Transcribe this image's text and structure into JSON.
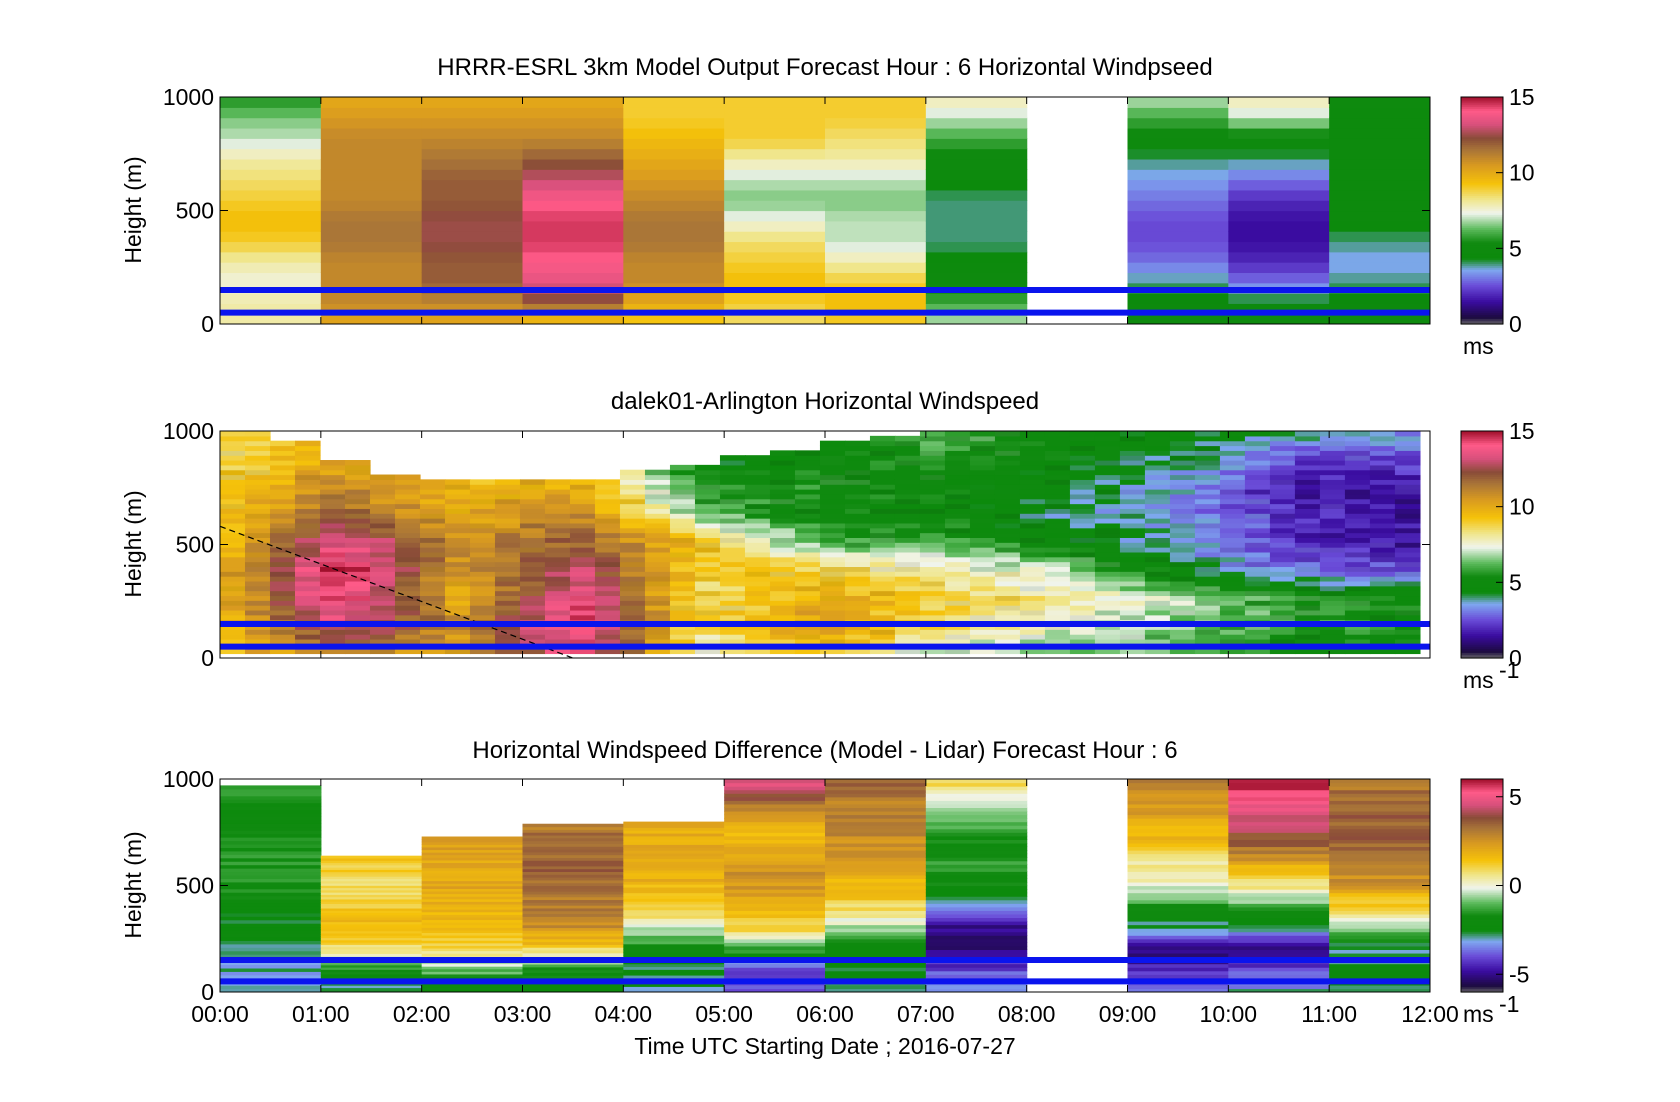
{
  "chart_data": [
    {
      "type": "heatmap",
      "title": "HRRR-ESRL 3km Model Output   Forecast Hour : 6 Horizontal Windpseed",
      "xlabel": "",
      "ylabel": "Height (m)",
      "xlim": [
        0,
        12
      ],
      "ylim": [
        0,
        1000
      ],
      "yticks": [
        0,
        500,
        1000
      ],
      "x_tick_labels": [],
      "colorbar": {
        "range": [
          0,
          15
        ],
        "ticks": [
          0,
          5,
          10,
          15
        ],
        "unit_label": "ms",
        "unit_superscript": ""
      },
      "reference_heights_m": [
        150,
        50
      ],
      "columns": [
        {
          "t0": 0,
          "t1": 1,
          "v": [
            8,
            8,
            7.5,
            8,
            9,
            9.5,
            9,
            8.5,
            8,
            7,
            6.5,
            5.5
          ]
        },
        {
          "t0": 1,
          "t1": 2,
          "v": [
            10,
            11,
            11,
            11,
            11.5,
            11.5,
            11,
            11,
            11,
            11,
            10.5,
            10
          ]
        },
        {
          "t0": 2,
          "t1": 3,
          "v": [
            10,
            11,
            12,
            12,
            12.5,
            12.5,
            12,
            12,
            11.5,
            11,
            10.5,
            10
          ]
        },
        {
          "t0": 3,
          "t1": 4,
          "v": [
            9,
            12,
            13.5,
            14,
            14.5,
            14.5,
            14,
            13,
            12,
            11,
            10.5,
            10
          ]
        },
        {
          "t0": 4,
          "t1": 5,
          "v": [
            9,
            10,
            11,
            11,
            11.5,
            11.5,
            11,
            10.5,
            10,
            9.5,
            9,
            9
          ]
        },
        {
          "t0": 5,
          "t1": 6,
          "v": [
            8.5,
            9,
            9.5,
            9,
            8.5,
            7.5,
            6.5,
            7,
            8,
            9,
            9,
            9
          ]
        },
        {
          "t0": 6,
          "t1": 7,
          "v": [
            9,
            9.5,
            9,
            8,
            7,
            7,
            6.5,
            7,
            8,
            8.5,
            9,
            9
          ]
        },
        {
          "t0": 7,
          "t1": 8,
          "v": [
            7,
            6,
            5,
            4.5,
            4,
            4,
            4,
            4.5,
            5,
            6,
            7,
            8
          ]
        },
        {
          "t0": 8,
          "t1": 9,
          "v": []
        },
        {
          "t0": 9,
          "t1": 10,
          "v": [
            5,
            4.5,
            4,
            3,
            2.5,
            2.5,
            3,
            3.5,
            4,
            5,
            6,
            7
          ]
        },
        {
          "t0": 10,
          "t1": 11,
          "v": [
            5,
            4.5,
            3,
            2,
            1.5,
            1.5,
            2,
            3,
            4,
            5,
            7,
            8
          ]
        },
        {
          "t0": 11,
          "t1": 12,
          "v": [
            5,
            4.5,
            4,
            3.5,
            4,
            4.5,
            4.5,
            4.5,
            4.5,
            4.5,
            4.5,
            5
          ]
        }
      ]
    },
    {
      "type": "heatmap",
      "title": "dalek01-Arlington  Horizontal Windspeed",
      "xlabel": "",
      "ylabel": "Height (m)",
      "xlim": [
        0,
        12
      ],
      "ylim": [
        0,
        1000
      ],
      "yticks": [
        0,
        500,
        1000
      ],
      "x_tick_labels": [],
      "colorbar": {
        "range": [
          0,
          15
        ],
        "ticks": [
          0,
          5,
          10,
          15
        ],
        "unit_label": "ms",
        "unit_superscript": "-1"
      },
      "reference_heights_m": [
        150,
        50
      ],
      "boundary_layer_line": {
        "x": [
          0,
          3.5
        ],
        "y": [
          580,
          0
        ]
      },
      "data_top_m": [
        1000,
        950,
        880,
        800,
        790,
        780,
        790,
        790,
        820,
        850,
        900,
        920,
        950,
        980,
        1000,
        1000,
        1000,
        1000,
        1000,
        1000,
        1000,
        1000,
        1000,
        1000
      ],
      "profiles": [
        [
          9.5,
          9.5,
          9.5,
          9.5,
          9,
          9,
          9,
          8.5,
          9
        ],
        [
          11,
          13.5,
          14.5,
          15,
          14,
          12,
          11,
          10,
          9.5
        ],
        [
          10,
          11,
          10,
          10.5,
          11,
          10,
          9.5,
          9,
          9
        ],
        [
          14,
          14.5,
          14,
          13,
          12,
          11,
          10,
          9.5,
          9
        ],
        [
          7.5,
          8.5,
          8.5,
          9,
          9.5,
          6.5,
          5.5,
          4.5,
          4.5
        ],
        [
          9.5,
          10.5,
          10,
          9,
          6,
          5,
          5.5,
          5,
          4.5
        ],
        [
          7,
          8.5,
          9,
          8,
          6,
          5,
          5,
          5.5,
          6.5
        ],
        [
          6.5,
          7.5,
          8,
          7,
          5,
          4,
          4.5,
          5,
          5
        ],
        [
          6,
          6.5,
          7,
          4.5,
          3.5,
          3.5,
          3.5,
          4,
          4.5
        ],
        [
          5,
          6,
          5.5,
          3,
          2,
          2,
          1.5,
          2.5,
          4
        ],
        [
          4.5,
          5.5,
          5,
          2.5,
          1.5,
          1.5,
          1.5,
          2.5,
          3.5
        ]
      ]
    },
    {
      "type": "heatmap",
      "title": "Horizontal Windspeed Difference (Model - Lidar) Forecast Hour : 6",
      "xlabel": "Time UTC  Starting Date ; 2016-07-27",
      "ylabel": "Height (m)",
      "xlim": [
        0,
        12
      ],
      "ylim": [
        0,
        1000
      ],
      "yticks": [
        0,
        500,
        1000
      ],
      "x_tick_labels": [
        "00:00",
        "01:00",
        "02:00",
        "03:00",
        "04:00",
        "05:00",
        "06:00",
        "07:00",
        "08:00",
        "09:00",
        "10:00",
        "11:00",
        "12:00"
      ],
      "colorbar": {
        "range": [
          -6,
          6
        ],
        "ticks": [
          -5,
          0,
          5
        ],
        "unit_label": "ms",
        "unit_superscript": "-1"
      },
      "reference_heights_m": [
        150,
        50
      ],
      "columns": [
        {
          "t0": 0,
          "t1": 1,
          "top": 970,
          "v": [
            -2.5,
            -3,
            -3,
            -2.5,
            -2.5,
            -2,
            -1.5,
            -1.5,
            -1.5,
            -2,
            -2,
            -1
          ]
        },
        {
          "t0": 1,
          "t1": 2,
          "top": 640,
          "v": [
            -3,
            -2,
            0.5,
            1.5,
            1.5,
            1,
            1,
            1.5
          ]
        },
        {
          "t0": 2,
          "t1": 3,
          "top": 730,
          "v": [
            -2,
            -1,
            1,
            1.5,
            2,
            2,
            2,
            2.5
          ]
        },
        {
          "t0": 3,
          "t1": 4,
          "top": 790,
          "v": [
            -2.5,
            -1.5,
            1.5,
            3,
            3,
            3.5,
            3.5,
            3
          ]
        },
        {
          "t0": 4,
          "t1": 5,
          "top": 800,
          "v": [
            -3,
            -2.5,
            -1.5,
            0.5,
            1.5,
            2,
            2,
            2
          ]
        },
        {
          "t0": 5,
          "t1": 6,
          "top": 1000,
          "v": [
            -4,
            -4,
            -1.5,
            1,
            2,
            2.5,
            2.5,
            1.5,
            2,
            3.5,
            5
          ]
        },
        {
          "t0": 6,
          "t1": 7,
          "top": 1000,
          "v": [
            -3,
            -2.5,
            -2,
            0,
            1.5,
            2,
            2.5,
            3,
            3,
            3.5
          ]
        },
        {
          "t0": 7,
          "t1": 8,
          "top": 1000,
          "v": [
            -3,
            -4,
            -5,
            -5,
            -3,
            -2,
            -1.5,
            -2,
            -1,
            0,
            1
          ]
        },
        {
          "t0": 8,
          "t1": 9,
          "top": 0,
          "v": []
        },
        {
          "t0": 9,
          "t1": 10,
          "top": 1000,
          "v": [
            -3.5,
            -4.5,
            -5,
            -3,
            -1.5,
            0,
            0.5,
            1.5,
            2,
            2.5,
            3
          ]
        },
        {
          "t0": 10,
          "t1": 11,
          "top": 1000,
          "v": [
            -3,
            -4,
            -5,
            -3,
            -1,
            0.5,
            2,
            3.5,
            4.5,
            5,
            6
          ]
        },
        {
          "t0": 11,
          "t1": 12,
          "top": 1000,
          "v": [
            -3,
            -2.5,
            -3,
            -0.5,
            1,
            2.5,
            3,
            3.5,
            3.5,
            3.5,
            3
          ]
        }
      ]
    }
  ]
}
